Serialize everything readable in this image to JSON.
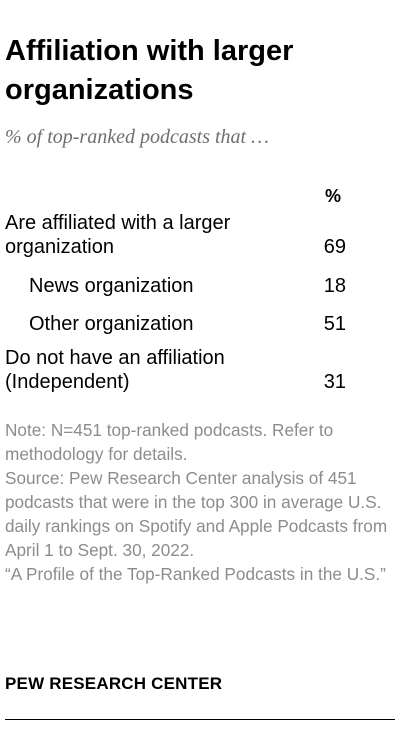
{
  "title": "Affiliation with larger organizations",
  "subtitle": "% of top-ranked podcasts that …",
  "chart_data": {
    "type": "table",
    "column_header": "%",
    "rows": [
      {
        "label": "Are affiliated with a larger organization",
        "value": "69",
        "indent": 0
      },
      {
        "label": "News organization",
        "value": "18",
        "indent": 1
      },
      {
        "label": "Other organization",
        "value": "51",
        "indent": 1
      },
      {
        "label": "Do not have an affiliation (Independent)",
        "value": "31",
        "indent": 0
      }
    ]
  },
  "note": "Note: N=451 top-ranked podcasts. Refer to methodology for details.",
  "source": "Source: Pew Research Center analysis of 451 podcasts that were in the top 300 in average U.S. daily rankings on Spotify and Apple Podcasts from April 1 to Sept. 30, 2022.",
  "report": "“A Profile of the Top-Ranked Podcasts in the U.S.”",
  "brand": "PEW RESEARCH CENTER"
}
